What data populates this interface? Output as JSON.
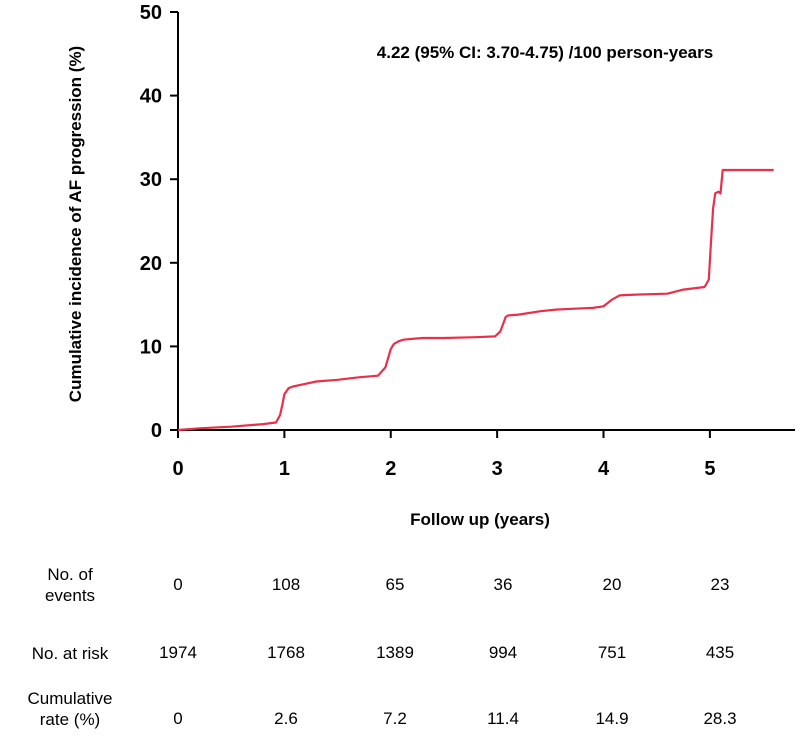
{
  "chart_data": {
    "type": "line",
    "title": "",
    "annotation": "4.22 (95% CI: 3.70-4.75) /100 person-years",
    "xlabel": "Follow up (years)",
    "ylabel": "Cumulative incidence of  AF progression (%)",
    "xlim": [
      0,
      5.8
    ],
    "ylim": [
      0,
      50
    ],
    "xticks": [
      "0",
      "1",
      "2",
      "3",
      "4",
      "5"
    ],
    "yticks": [
      "0",
      "10",
      "20",
      "30",
      "40",
      "50"
    ],
    "grid": false,
    "color": "#e8304a",
    "series": [
      {
        "x": [
          0,
          0.2,
          0.5,
          0.8,
          0.92,
          0.96,
          0.98,
          1.0,
          1.04,
          1.08,
          1.15,
          1.3,
          1.5,
          1.7,
          1.88,
          1.95,
          1.98,
          2.0,
          2.03,
          2.07,
          2.12,
          2.2,
          2.3,
          2.5,
          2.8,
          2.98,
          3.03,
          3.06,
          3.08,
          3.1,
          3.2,
          3.3,
          3.4,
          3.55,
          3.7,
          3.9,
          4.0,
          4.08,
          4.15,
          4.3,
          4.6,
          4.75,
          4.95,
          4.99,
          5.01,
          5.03,
          5.05,
          5.08,
          5.1,
          5.12,
          5.15,
          5.2,
          5.4,
          5.6
        ],
        "y": [
          0,
          0.2,
          0.4,
          0.7,
          0.9,
          1.8,
          3.0,
          4.3,
          5.0,
          5.2,
          5.4,
          5.8,
          6.0,
          6.3,
          6.5,
          7.5,
          8.8,
          9.7,
          10.3,
          10.6,
          10.8,
          10.9,
          11.0,
          11.0,
          11.1,
          11.2,
          11.8,
          12.8,
          13.5,
          13.7,
          13.8,
          14.0,
          14.2,
          14.4,
          14.5,
          14.6,
          14.8,
          15.6,
          16.1,
          16.2,
          16.3,
          16.8,
          17.1,
          18.0,
          22.5,
          26.5,
          28.3,
          28.5,
          28.3,
          31.1,
          31.1,
          31.1,
          31.1,
          31.1
        ]
      }
    ]
  },
  "risk_table": {
    "rows": [
      {
        "label_line1": "No. of",
        "label_line2": "events",
        "values": [
          "0",
          "108",
          "65",
          "36",
          "20",
          "23"
        ]
      },
      {
        "label_line1": "No. at risk",
        "label_line2": "",
        "values": [
          "1974",
          "1768",
          "1389",
          "994",
          "751",
          "435"
        ]
      },
      {
        "label_line1": "Cumulative",
        "label_line2": "rate (%)",
        "values": [
          "0",
          "2.6",
          "7.2",
          "11.4",
          "14.9",
          "28.3"
        ]
      }
    ]
  }
}
